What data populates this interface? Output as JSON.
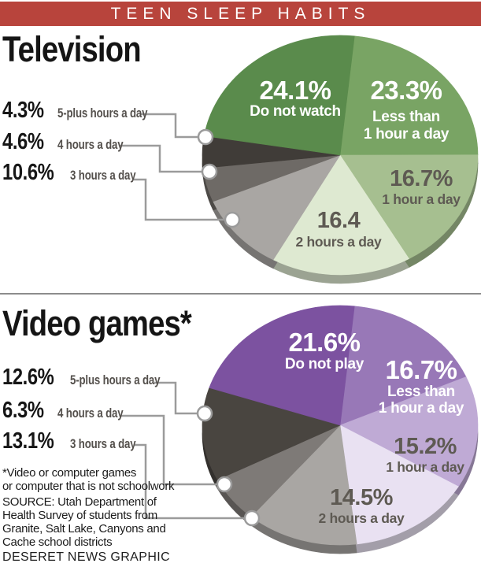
{
  "header": {
    "title": "TEEN SLEEP HABITS"
  },
  "sections": [
    {
      "heading": "Television"
    },
    {
      "heading": "Video games*"
    }
  ],
  "notes": {
    "footnote_lines": [
      "*Video or computer games",
      "or computer that is not schoolwork"
    ],
    "source_lines": [
      "SOURCE: Utah Department of",
      "Health Survey of students from",
      "Granite, Salt Lake, Canyons and",
      "Cache school districts"
    ],
    "credit": "DESERET NEWS GRAPHIC"
  },
  "colors": {
    "header_bg": "#b8443c",
    "header_text": "#ffffff",
    "leader": "#9b9b9b",
    "divider": "#8c8c8c",
    "callout_value_text": "#161616",
    "callout_label_text": "#54504c",
    "on_slice_gray": "#5e5a53",
    "on_slice_white": "#ffffff"
  },
  "chart_data": [
    {
      "type": "pie",
      "id": "television",
      "title": "Television",
      "unit": "percent of teens",
      "effect": "3d",
      "direction": "clockwise",
      "slices": [
        {
          "label": "Less than 1 hour a day",
          "value": 23.3,
          "display": "23.3%",
          "name_lines": [
            "Less than",
            "1 hour a day"
          ],
          "color": "#79a464",
          "label_placement": "on-slice",
          "text_color": "white"
        },
        {
          "label": "1 hour a day",
          "value": 16.7,
          "display": "16.7%",
          "name_lines": [
            "1 hour a day"
          ],
          "color": "#a6bf90",
          "label_placement": "on-slice",
          "text_color": "gray"
        },
        {
          "label": "2 hours a day",
          "value": 16.4,
          "display": "16.4",
          "name_lines": [
            "2 hours a day"
          ],
          "color": "#dee9d1",
          "label_placement": "on-slice",
          "text_color": "gray"
        },
        {
          "label": "3 hours a day",
          "value": 10.6,
          "display": "10.6%",
          "name_lines": [],
          "color": "#a9a6a3",
          "label_placement": "callout",
          "text_color": "gray"
        },
        {
          "label": "4 hours a day",
          "value": 4.6,
          "display": "4.6%",
          "name_lines": [],
          "color": "#6e6a66",
          "label_placement": "callout",
          "text_color": "gray"
        },
        {
          "label": "5-plus hours a day",
          "value": 4.3,
          "display": "4.3%",
          "name_lines": [],
          "color": "#403c38",
          "label_placement": "callout",
          "text_color": "gray"
        },
        {
          "label": "Do not watch",
          "value": 24.1,
          "display": "24.1%",
          "name_lines": [
            "Do not watch"
          ],
          "color": "#5a8b4c",
          "label_placement": "on-slice",
          "text_color": "white"
        }
      ]
    },
    {
      "type": "pie",
      "id": "video-games",
      "title": "Video games",
      "unit": "percent of teens",
      "effect": "3d",
      "direction": "clockwise",
      "slices": [
        {
          "label": "Less than 1 hour a day",
          "value": 16.7,
          "display": "16.7%",
          "name_lines": [
            "Less than",
            "1 hour a day"
          ],
          "color": "#9878b7",
          "label_placement": "on-slice",
          "text_color": "white"
        },
        {
          "label": "1 hour a day",
          "value": 15.2,
          "display": "15.2%",
          "name_lines": [
            "1 hour a day"
          ],
          "color": "#bfaad5",
          "label_placement": "on-slice",
          "text_color": "gray"
        },
        {
          "label": "2 hours a day",
          "value": 14.5,
          "display": "14.5%",
          "name_lines": [
            "2 hours a day"
          ],
          "color": "#e9e1f2",
          "label_placement": "on-slice",
          "text_color": "gray"
        },
        {
          "label": "3 hours a day",
          "value": 13.1,
          "display": "13.1%",
          "name_lines": [],
          "color": "#a9a6a3",
          "label_placement": "callout",
          "text_color": "gray"
        },
        {
          "label": "4 hours a day",
          "value": 6.3,
          "display": "6.3%",
          "name_lines": [],
          "color": "#7e7a77",
          "label_placement": "callout",
          "text_color": "gray"
        },
        {
          "label": "5-plus hours a day",
          "value": 12.6,
          "display": "12.6%",
          "name_lines": [],
          "color": "#494540",
          "label_placement": "callout",
          "text_color": "gray"
        },
        {
          "label": "Do not play",
          "value": 21.6,
          "display": "21.6%",
          "name_lines": [
            "Do not play"
          ],
          "color": "#7c52a0",
          "label_placement": "on-slice",
          "text_color": "white"
        }
      ]
    }
  ]
}
